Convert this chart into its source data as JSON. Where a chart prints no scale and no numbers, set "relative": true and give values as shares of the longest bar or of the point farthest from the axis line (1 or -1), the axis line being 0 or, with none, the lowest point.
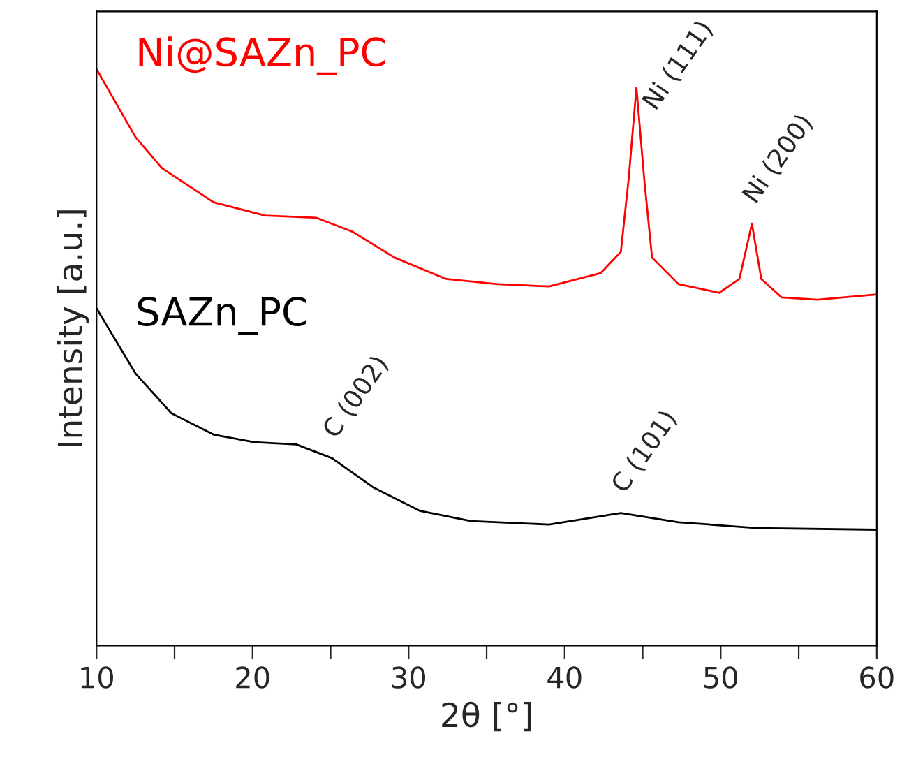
{
  "chart_data": {
    "type": "line",
    "relative": true,
    "xlabel": "2θ [°]",
    "ylabel": "Intensity [a.u.]",
    "xlim": [
      10,
      60
    ],
    "xticks": [
      10,
      {
        "value": 15,
        "label": null
      },
      20,
      {
        "value": 25,
        "label": null
      },
      30,
      {
        "value": 35,
        "label": null
      },
      40,
      {
        "value": 45,
        "label": null
      },
      50,
      {
        "value": 55,
        "label": null
      },
      60
    ],
    "tick_labels": "x",
    "grid": false,
    "legend": false,
    "series": [
      {
        "name": "Ni@SAZn_PC",
        "color": "#ff0000",
        "x": [
          10,
          12.5,
          14.2,
          17.5,
          20.8,
          24.1,
          26.4,
          29.1,
          32.4,
          35.7,
          39.0,
          42.3,
          43.6,
          44.1,
          44.6,
          45.1,
          45.6,
          47.3,
          49.9,
          51.2,
          52.0,
          52.6,
          53.9,
          56.2,
          60
        ],
        "values": [
          1.0,
          0.882,
          0.828,
          0.769,
          0.746,
          0.742,
          0.718,
          0.673,
          0.636,
          0.627,
          0.623,
          0.646,
          0.683,
          0.809,
          0.968,
          0.809,
          0.673,
          0.627,
          0.612,
          0.636,
          0.732,
          0.636,
          0.604,
          0.6,
          0.609
        ]
      },
      {
        "name": "SAZn_PC",
        "color": "#000000",
        "x": [
          10,
          12.5,
          14.8,
          17.5,
          20.1,
          22.8,
          25.1,
          27.7,
          30.7,
          34.0,
          39.0,
          43.6,
          47.3,
          52.3,
          60
        ],
        "values": [
          0.585,
          0.472,
          0.403,
          0.366,
          0.353,
          0.349,
          0.325,
          0.275,
          0.234,
          0.216,
          0.21,
          0.23,
          0.214,
          0.204,
          0.201
        ]
      }
    ],
    "annotations": [
      {
        "text": "Ni (111)",
        "x": 44.6,
        "y": 0.968
      },
      {
        "text": "Ni (200)",
        "x": 52.0,
        "y": 0.732
      },
      {
        "text": "C (002)",
        "x": 25.1,
        "y": 0.325
      },
      {
        "text": "C (101)",
        "x": 43.6,
        "y": 0.23
      }
    ]
  }
}
